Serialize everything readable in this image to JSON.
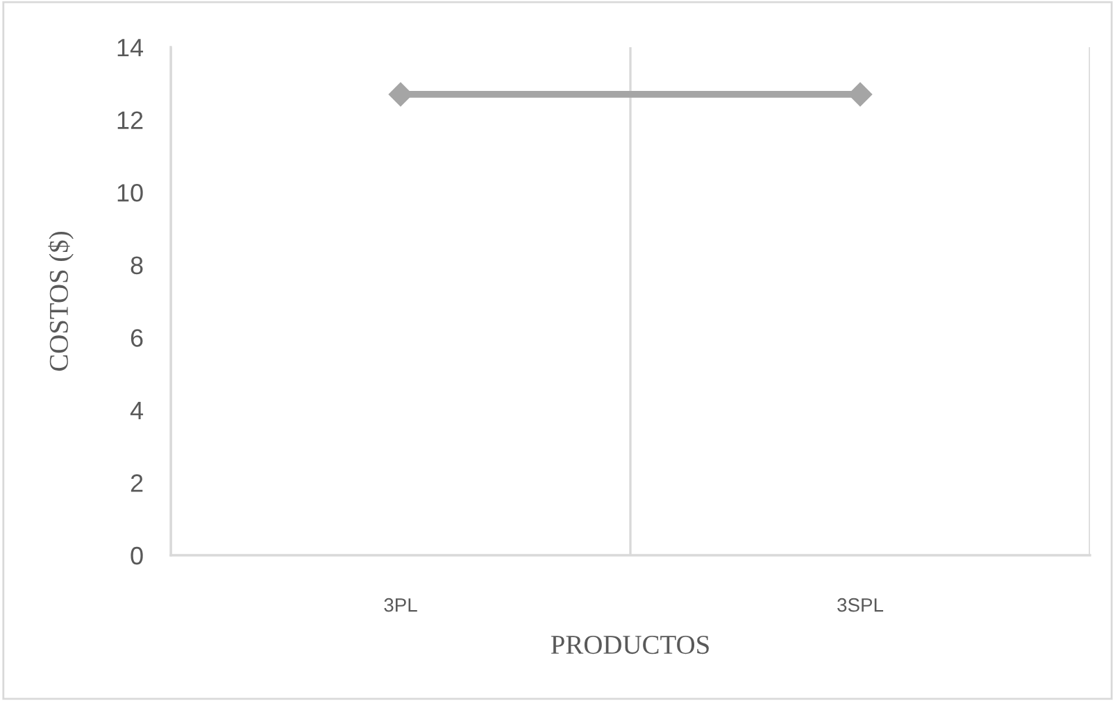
{
  "chart_data": {
    "type": "line",
    "xlabel": "PRODUCTOS",
    "ylabel": "COSTOS ($)",
    "categories": [
      "3PL",
      "3SPL"
    ],
    "series": [
      {
        "color": "#a5a5a5",
        "values": [
          12.7,
          12.7
        ]
      }
    ],
    "ylim": [
      0,
      14
    ],
    "yticks": [
      0,
      2,
      4,
      6,
      8,
      10,
      12,
      14
    ],
    "grid": "x",
    "marker": "diamond",
    "line_style": "solid"
  }
}
